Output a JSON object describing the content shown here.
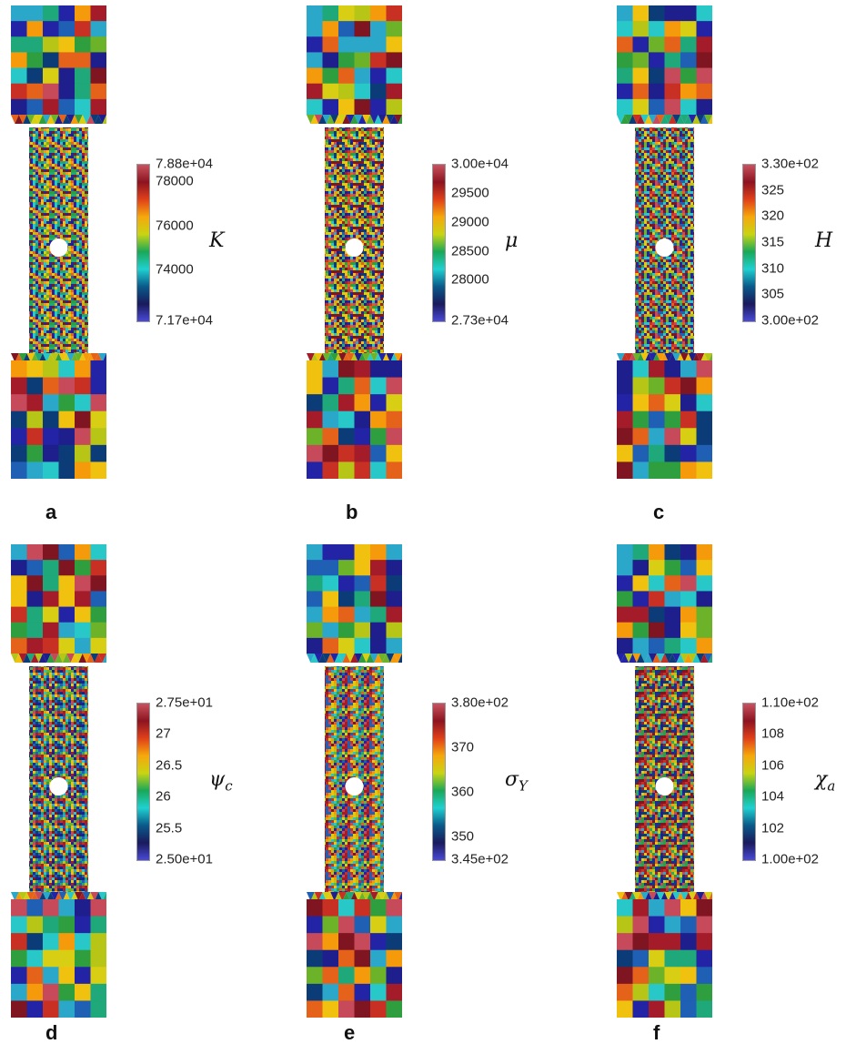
{
  "colors": {
    "palette": [
      "#1e1e8c",
      "#2323a6",
      "#0c3c78",
      "#1f5fb4",
      "#2aa7c9",
      "#28c8c8",
      "#1fa87a",
      "#2e9e3e",
      "#6db32a",
      "#b7c516",
      "#d8cf14",
      "#f0c20f",
      "#f59a0b",
      "#e5621a",
      "#c83024",
      "#a41c2a",
      "#7e1521",
      "#c64a5a"
    ],
    "colorbar_stops": [
      "#4a4ad6",
      "#1a1a5c",
      "#0a5a8a",
      "#20d0d0",
      "#1aa858",
      "#c8d414",
      "#f6a80c",
      "#e0401a",
      "#8c1420",
      "#c85260"
    ]
  },
  "panels": [
    {
      "id": "a",
      "label": "a",
      "symbol": "K",
      "symbol_sub": "",
      "ticks": [
        "7.88e+04",
        "78000",
        "76000",
        "74000",
        "7.17e+04"
      ],
      "tick_values": [
        78800,
        78000,
        76000,
        74000,
        71700
      ],
      "range": [
        71700,
        78800
      ],
      "seed": 11
    },
    {
      "id": "b",
      "label": "b",
      "symbol": "μ",
      "symbol_sub": "",
      "ticks": [
        "3.00e+04",
        "29500",
        "29000",
        "28500",
        "28000",
        "2.73e+04"
      ],
      "tick_values": [
        30000,
        29500,
        29000,
        28500,
        28000,
        27300
      ],
      "range": [
        27300,
        30000
      ],
      "seed": 23
    },
    {
      "id": "c",
      "label": "c",
      "symbol": "H",
      "symbol_sub": "",
      "ticks": [
        "3.30e+02",
        "325",
        "320",
        "315",
        "310",
        "305",
        "3.00e+02"
      ],
      "tick_values": [
        330,
        325,
        320,
        315,
        310,
        305,
        300
      ],
      "range": [
        300,
        330
      ],
      "seed": 37
    },
    {
      "id": "d",
      "label": "d",
      "symbol": "ψ",
      "symbol_sub": "c",
      "ticks": [
        "2.75e+01",
        "27",
        "26.5",
        "26",
        "25.5",
        "2.50e+01"
      ],
      "tick_values": [
        27.5,
        27,
        26.5,
        26,
        25.5,
        25
      ],
      "range": [
        25,
        27.5
      ],
      "seed": 41
    },
    {
      "id": "e",
      "label": "e",
      "symbol": "σ",
      "symbol_sub": "Y",
      "ticks": [
        "3.80e+02",
        "370",
        "360",
        "350",
        "3.45e+02"
      ],
      "tick_values": [
        380,
        370,
        360,
        350,
        345
      ],
      "range": [
        345,
        380
      ],
      "seed": 53
    },
    {
      "id": "f",
      "label": "f",
      "symbol": "χ",
      "symbol_sub": "a",
      "ticks": [
        "1.10e+02",
        "108",
        "106",
        "104",
        "102",
        "1.00e+02"
      ],
      "tick_values": [
        110,
        108,
        106,
        104,
        102,
        100
      ],
      "range": [
        100,
        110
      ],
      "seed": 67
    }
  ]
}
